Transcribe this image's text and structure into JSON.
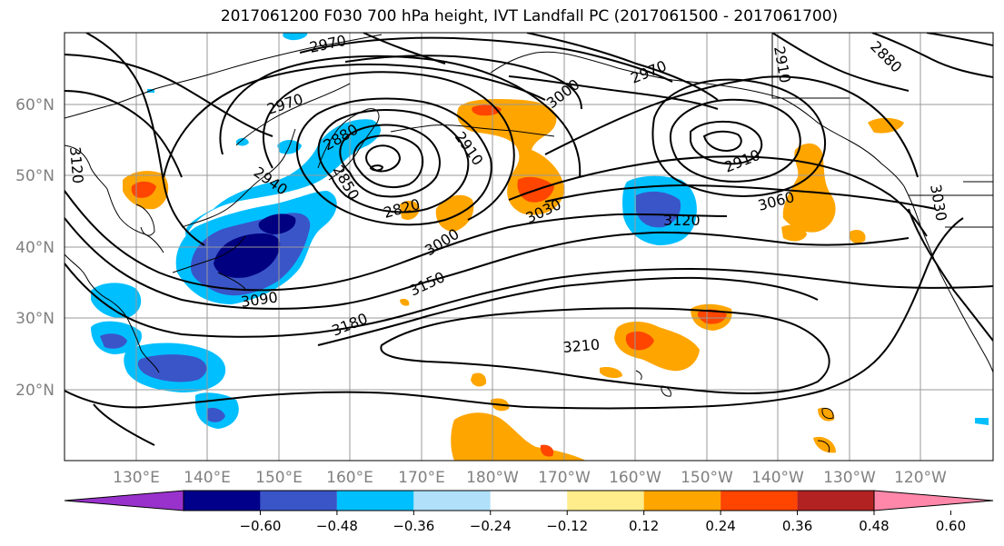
{
  "title": "2017061200 F030 700 hPa height, IVT Landfall PC (2017061500 - 2017061700)",
  "map": {
    "lat_labels": [
      "60°N",
      "50°N",
      "40°N",
      "30°N",
      "20°N"
    ],
    "lon_labels": [
      "130°E",
      "140°E",
      "150°E",
      "160°E",
      "170°E",
      "180°W",
      "170°W",
      "160°W",
      "150°W",
      "140°W",
      "130°W",
      "120°W"
    ],
    "contour_labels": [
      "2970",
      "2970",
      "2970",
      "3000",
      "2910",
      "2880",
      "2880",
      "2910",
      "2850",
      "2820",
      "2910",
      "2940",
      "3120",
      "3030",
      "3060",
      "3000",
      "3030",
      "3120",
      "3150",
      "3090",
      "3180",
      "3210"
    ],
    "colors": {
      "land_outline": "#000000",
      "contour": "#000000",
      "grid": "#999999",
      "neg_strong": "#000080",
      "neg_mid": "#3a55c8",
      "neg_light": "#00bfff",
      "pos_light": "#fed57a",
      "pos_mid": "#ffa500",
      "pos_strong": "#ff4500"
    }
  },
  "colorbar": {
    "ticks": [
      "−0.60",
      "−0.48",
      "−0.36",
      "−0.24",
      "−0.12",
      "0.12",
      "0.24",
      "0.36",
      "0.48",
      "0.60"
    ],
    "colors": [
      "#9932cc",
      "#00008b",
      "#3a55c8",
      "#00bfff",
      "#b0e0fa",
      "#ffffff",
      "#ffec8b",
      "#ffa500",
      "#ff4500",
      "#b22222",
      "#ff88aa"
    ]
  }
}
